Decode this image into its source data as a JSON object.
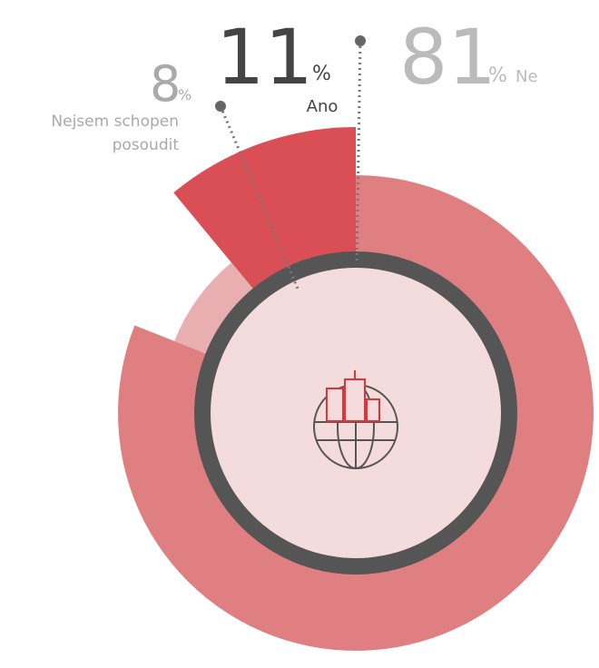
{
  "chart_data": {
    "type": "pie",
    "unit": "%",
    "categories": [
      "Ano",
      "Ne",
      "Nejsem schopen posoudit"
    ],
    "values": [
      11,
      81,
      8
    ],
    "colors": [
      "#d94f55",
      "#e07f82",
      "#e9aeb0"
    ]
  }
}
